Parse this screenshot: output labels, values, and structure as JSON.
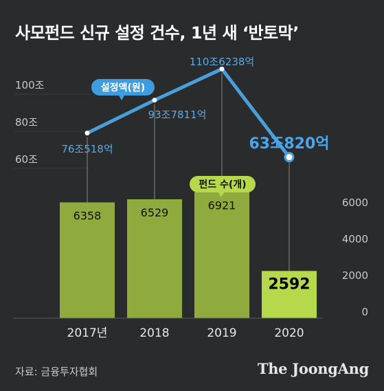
{
  "title": "사모펀드 신규 설정 건수, 1년 새 ‘반토막’",
  "source": "자료: 금융투자협회",
  "brand": "The JoongAng",
  "chart_data": {
    "type": "bar",
    "categories": [
      "2017년",
      "2018",
      "2019",
      "2020"
    ],
    "bar_series": {
      "name": "펀드 수(개)",
      "values": [
        6358,
        6529,
        6921,
        2592
      ],
      "value_labels": [
        "6358",
        "6529",
        "6921",
        "2592"
      ],
      "axis_ticks": [
        0,
        2000,
        4000,
        6000
      ],
      "ylim": [
        0,
        7000
      ]
    },
    "line_series": {
      "name": "설정액(원)",
      "values": [
        76.0518,
        93.7811,
        110.6238,
        63.082
      ],
      "value_labels": [
        "76조518억",
        "93조7811억",
        "110조6238억",
        "63조820억"
      ],
      "axis_ticks": [
        60,
        80,
        100
      ],
      "axis_tick_labels": [
        "60조",
        "80조",
        "100조"
      ],
      "ylim": [
        0,
        120
      ]
    },
    "colors": {
      "bar": "#8fab3e",
      "bar_highlight": "#b5d94a",
      "line": "#4a9fdb",
      "line_label": "#5aaae6",
      "line_label_highlight": "#4aa6ec",
      "background": "#2a2b2d",
      "axis_text": "#c8c8c8"
    },
    "legend": {
      "placement": "inline"
    }
  }
}
